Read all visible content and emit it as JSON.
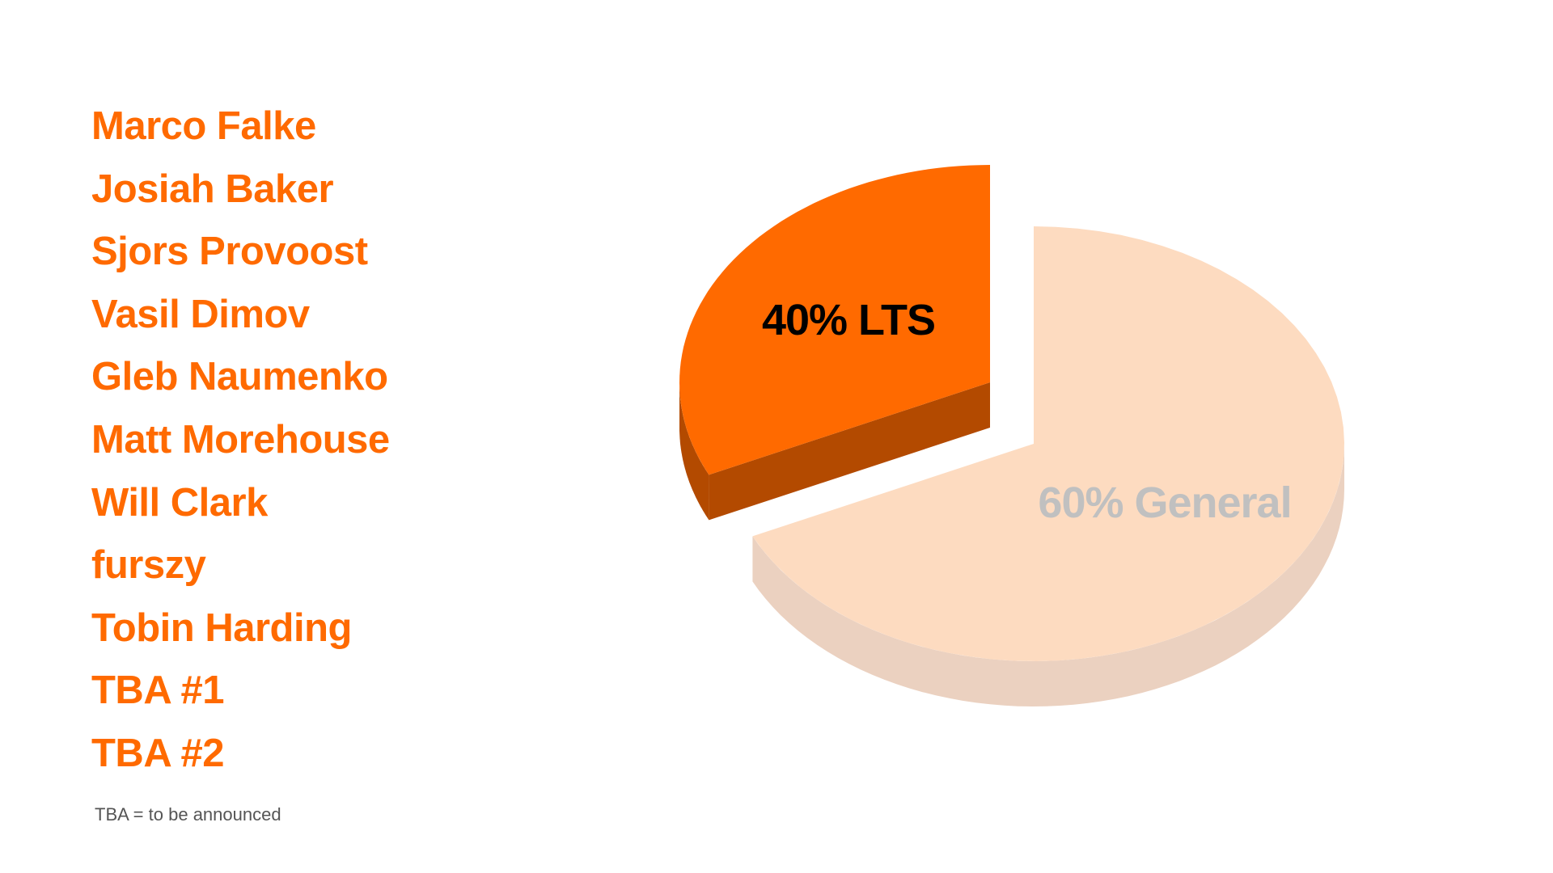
{
  "speakers": [
    "Marco Falke",
    "Josiah Baker",
    "Sjors Provoost",
    "Vasil Dimov",
    "Gleb Naumenko",
    "Matt Morehouse",
    "Will Clark",
    "furszy",
    "Tobin Harding",
    "TBA #1",
    "TBA #2"
  ],
  "footnote": "TBA = to be announced",
  "colors": {
    "name_text": "#FF6A00"
  },
  "chart_data": {
    "type": "pie",
    "style": "3d-exploded",
    "slices": [
      {
        "label": "60% General",
        "value": 60,
        "top_color": "#FDDBC0",
        "side_color": "#EBD1C0",
        "label_color": "#C0C0C0",
        "exploded": false
      },
      {
        "label": "40% LTS",
        "value": 40,
        "top_color": "#FF6A00",
        "side_color": "#B34A00",
        "label_color": "#000000",
        "exploded": true
      }
    ],
    "legend": "none"
  }
}
